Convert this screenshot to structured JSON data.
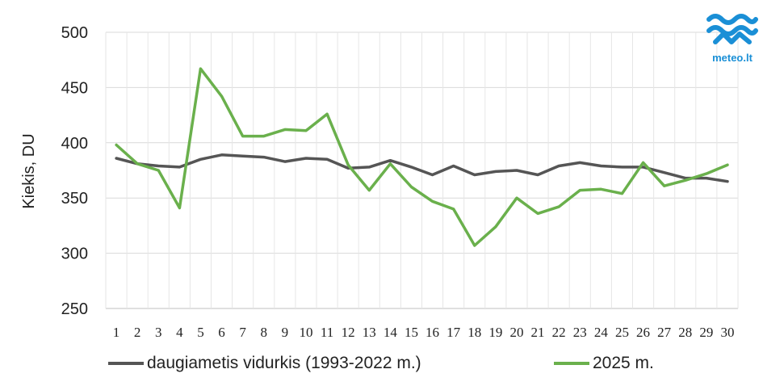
{
  "chart_data": {
    "type": "line",
    "title": "",
    "xlabel": "",
    "ylabel": "Kiekis, DU",
    "ylim": [
      250,
      500
    ],
    "yticks": [
      250,
      300,
      350,
      400,
      450,
      500
    ],
    "grid": true,
    "legend_position": "bottom",
    "categories": [
      "1",
      "2",
      "3",
      "4",
      "5",
      "6",
      "7",
      "8",
      "9",
      "10",
      "11",
      "12",
      "13",
      "14",
      "15",
      "16",
      "17",
      "18",
      "19",
      "20",
      "21",
      "22",
      "23",
      "24",
      "25",
      "26",
      "27",
      "28",
      "29",
      "30"
    ],
    "series": [
      {
        "name": "daugiametis vidurkis (1993-2022 m.)",
        "color": "#555555",
        "values": [
          386,
          381,
          379,
          378,
          385,
          389,
          388,
          387,
          383,
          386,
          385,
          377,
          378,
          384,
          378,
          371,
          379,
          371,
          374,
          375,
          371,
          379,
          382,
          379,
          378,
          378,
          373,
          368,
          368,
          365
        ]
      },
      {
        "name": "2025 m.",
        "color": "#6ab04c",
        "values": [
          398,
          381,
          375,
          341,
          467,
          442,
          406,
          406,
          412,
          411,
          426,
          380,
          357,
          381,
          360,
          347,
          340,
          307,
          324,
          350,
          336,
          342,
          357,
          358,
          354,
          382,
          361,
          366,
          372,
          380
        ]
      }
    ]
  },
  "logo": {
    "text": "meteo.lt",
    "color": "#1a8fd6"
  }
}
